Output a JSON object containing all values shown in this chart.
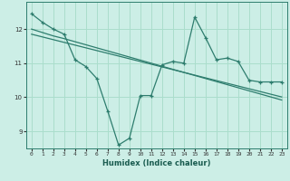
{
  "title": "",
  "xlabel": "Humidex (Indice chaleur)",
  "ylabel": "",
  "bg_color": "#cceee6",
  "line_color": "#2e7d6e",
  "grid_color": "#aaddcc",
  "x_data": [
    0,
    1,
    2,
    3,
    4,
    5,
    6,
    7,
    8,
    9,
    10,
    11,
    12,
    13,
    14,
    15,
    16,
    17,
    18,
    19,
    20,
    21,
    22,
    23
  ],
  "y_main": [
    12.45,
    12.2,
    12.0,
    11.85,
    11.1,
    10.9,
    10.55,
    9.6,
    8.6,
    8.8,
    10.05,
    10.05,
    10.95,
    11.05,
    11.0,
    12.35,
    11.75,
    11.1,
    11.15,
    11.05,
    10.5,
    10.45,
    10.45,
    10.45
  ],
  "y_trend1": [
    12.0,
    11.9,
    11.8,
    11.72,
    11.63,
    11.54,
    11.45,
    11.36,
    11.27,
    11.18,
    11.09,
    11.0,
    10.91,
    10.82,
    10.73,
    10.64,
    10.55,
    10.46,
    10.37,
    10.28,
    10.19,
    10.1,
    10.01,
    9.92
  ],
  "y_trend2": [
    11.85,
    11.77,
    11.69,
    11.61,
    11.53,
    11.45,
    11.37,
    11.29,
    11.21,
    11.13,
    11.05,
    10.97,
    10.89,
    10.81,
    10.73,
    10.65,
    10.57,
    10.49,
    10.41,
    10.33,
    10.25,
    10.17,
    10.09,
    10.01
  ],
  "ylim": [
    8.5,
    12.8
  ],
  "yticks": [
    9,
    10,
    11,
    12
  ],
  "xticks": [
    0,
    1,
    2,
    3,
    4,
    5,
    6,
    7,
    8,
    9,
    10,
    11,
    12,
    13,
    14,
    15,
    16,
    17,
    18,
    19,
    20,
    21,
    22,
    23
  ]
}
